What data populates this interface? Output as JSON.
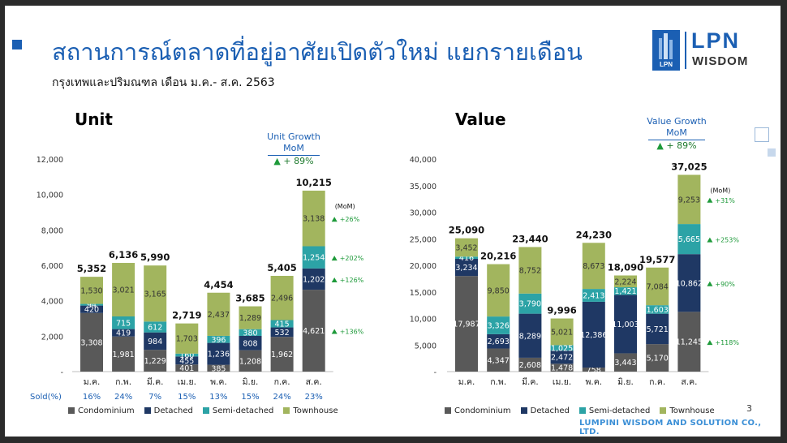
{
  "slide": {
    "title": "สถานการณ์ตลาดที่อยู่อาศัยเปิดตัวใหม่ แยกรายเดือน",
    "subtitle": "กรุงเทพและปริมณฑล เดือน ม.ค.- ส.ค. 2563",
    "logo_main": "LPN",
    "logo_sub": "WISDOM",
    "logo_mark": "LPN",
    "page_number": "3",
    "footer": "LUMPINI WISDOM AND SOLUTION CO., LTD."
  },
  "colors": {
    "condominium": "#595959",
    "detached": "#1f3864",
    "semi_detached": "#2ca3a6",
    "townhouse": "#a2b55e",
    "growth": "#1e9a3a",
    "accent": "#1b5fb3"
  },
  "legend": [
    "Condominium",
    "Detached",
    "Semi-detached",
    "Townhouse"
  ],
  "chart_data": [
    {
      "type": "bar",
      "stacked": true,
      "title": "Unit",
      "categories": [
        "ม.ค.",
        "ก.พ.",
        "มี.ค.",
        "เม.ย.",
        "พ.ค.",
        "มิ.ย.",
        "ก.ค.",
        "ส.ค."
      ],
      "ylim": [
        0,
        12000
      ],
      "yticks": [
        "-",
        "2,000",
        "4,000",
        "6,000",
        "8,000",
        "10,000",
        "12,000"
      ],
      "series": [
        {
          "name": "Condominium",
          "values": [
            3308,
            1981,
            1229,
            401,
            385,
            1208,
            1962,
            4621
          ]
        },
        {
          "name": "Detached",
          "values": [
            420,
            419,
            984,
            455,
            1236,
            808,
            532,
            1202
          ]
        },
        {
          "name": "Semi-detached",
          "values": [
            94,
            715,
            612,
            160,
            396,
            380,
            415,
            1254
          ]
        },
        {
          "name": "Townhouse",
          "values": [
            1530,
            3021,
            3165,
            1703,
            2437,
            1289,
            2496,
            3138
          ]
        }
      ],
      "series_labels": [
        [
          "3,308",
          "1,981",
          "1,229",
          "401",
          "385",
          "1,208",
          "1,962",
          "4,621"
        ],
        [
          "420",
          "419",
          "984",
          "455",
          "1,236",
          "808",
          "532",
          "1,202"
        ],
        [
          "94",
          "715",
          "612",
          "160",
          "396",
          "380",
          "415",
          "1,254"
        ],
        [
          "1,530",
          "3,021",
          "3,165",
          "1,703",
          "2,437",
          "1,289",
          "2,496",
          "3,138"
        ]
      ],
      "totals": [
        5352,
        6136,
        5990,
        2719,
        4454,
        3685,
        5405,
        10215
      ],
      "total_labels": [
        "5,352",
        "6,136",
        "5,990",
        "2,719",
        "4,454",
        "3,685",
        "5,405",
        "10,215"
      ],
      "sold_label": "Sold(%)",
      "sold_pct": [
        "16%",
        "24%",
        "7%",
        "15%",
        "13%",
        "15%",
        "24%",
        "23%"
      ],
      "mom_label": "(MoM)",
      "mom": [
        "+136%",
        "+126%",
        "+202%",
        "+26%"
      ],
      "growth_title": "Unit Growth MoM",
      "growth_value": "+ 89%"
    },
    {
      "type": "bar",
      "stacked": true,
      "title": "Value",
      "categories": [
        "ม.ค.",
        "ก.พ.",
        "มี.ค.",
        "เม.ย.",
        "พ.ค.",
        "มิ.ย.",
        "ก.ค.",
        "ส.ค."
      ],
      "ylim": [
        0,
        40000
      ],
      "yticks": [
        "-",
        "5,000",
        "10,000",
        "15,000",
        "20,000",
        "25,000",
        "30,000",
        "35,000",
        "40,000"
      ],
      "series": [
        {
          "name": "Condominium",
          "values": [
            17987,
            4347,
            2608,
            1478,
            758,
            3443,
            5170,
            11245
          ]
        },
        {
          "name": "Detached",
          "values": [
            3234,
            2693,
            8289,
            2472,
            12386,
            11003,
            5721,
            10862
          ]
        },
        {
          "name": "Semi-detached",
          "values": [
            416,
            3326,
            3790,
            1025,
            2413,
            1421,
            1603,
            5665
          ]
        },
        {
          "name": "Townhouse",
          "values": [
            3452,
            9850,
            8752,
            5021,
            8673,
            2224,
            7084,
            9253
          ]
        }
      ],
      "series_labels": [
        [
          "17,987",
          "4,347",
          "2,608",
          "1,478",
          "758",
          "3,443",
          "5,170",
          "11,245"
        ],
        [
          "3,234",
          "2,693",
          "8,289",
          "2,472",
          "12,386",
          "11,003",
          "5,721",
          "10,862"
        ],
        [
          "416",
          "3,326",
          "3,790",
          "1,025",
          "2,413",
          "1,421",
          "1,603",
          "5,665"
        ],
        [
          "3,452",
          "9,850",
          "8,752",
          "5,021",
          "8,673",
          "2,224",
          "7,084",
          "9,253"
        ]
      ],
      "totals": [
        25090,
        20216,
        23440,
        9996,
        24230,
        18090,
        19577,
        37025
      ],
      "total_labels": [
        "25,090",
        "20,216",
        "23,440",
        "9,996",
        "24,230",
        "18,090",
        "19,577",
        "37,025"
      ],
      "mom_label": "(MoM)",
      "mom": [
        "+118%",
        "+90%",
        "+253%",
        "+31%"
      ],
      "growth_title": "Value Growth MoM",
      "growth_value": "+ 89%"
    }
  ]
}
